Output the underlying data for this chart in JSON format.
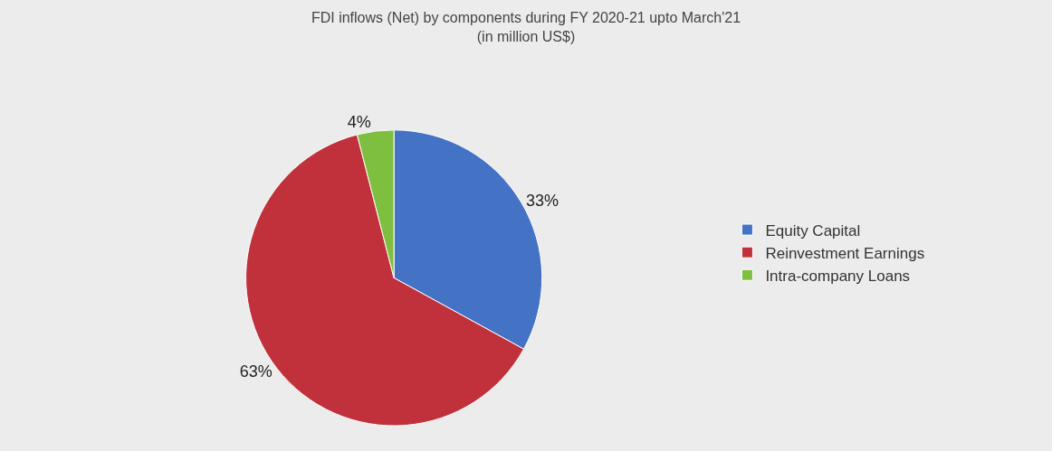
{
  "chart_data": {
    "type": "pie",
    "title": "FDI inflows (Net) by components during FY 2020-21 upto March'21",
    "subtitle": "(in million US$)",
    "categories": [
      "Equity Capital",
      "Reinvestment Earnings",
      "Intra-company Loans"
    ],
    "values": [
      33,
      63,
      4
    ],
    "colors": [
      "#4472c4",
      "#c0313b",
      "#7fbf3f"
    ],
    "value_labels": [
      "33%",
      "63%",
      "4%"
    ],
    "legend": "right"
  }
}
